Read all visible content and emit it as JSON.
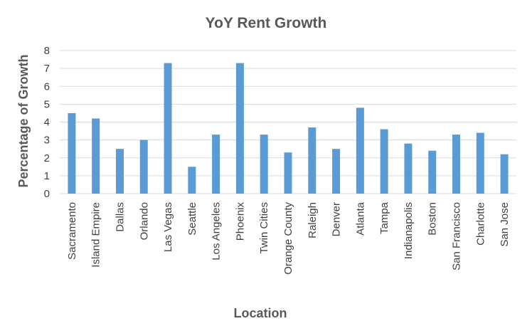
{
  "chart_data": {
    "type": "bar",
    "title": "YoY Rent Growth",
    "xlabel": "Location",
    "ylabel": "Percentage  of Growth",
    "ylim": [
      0,
      8
    ],
    "yticks": [
      0,
      1,
      2,
      3,
      4,
      5,
      6,
      7,
      8
    ],
    "grid": true,
    "legend": "none",
    "bar_color": "#5b9bd5",
    "categories": [
      "Sacramento",
      "Island Empire",
      "Dallas",
      "Orlando",
      "Las Vegas",
      "Seattle",
      "Los Angeles",
      "Phoenix",
      "Twin Cities",
      "Orange County",
      "Raleigh",
      "Denver",
      "Atlanta",
      "Tampa",
      "Indianapolis",
      "Boston",
      "San Francisco",
      "Charlotte",
      "San Jose"
    ],
    "values": [
      4.5,
      4.2,
      2.5,
      3.0,
      7.3,
      1.5,
      3.3,
      7.3,
      3.3,
      2.3,
      3.7,
      2.5,
      4.8,
      3.6,
      2.8,
      2.4,
      3.3,
      3.4,
      2.2
    ]
  }
}
